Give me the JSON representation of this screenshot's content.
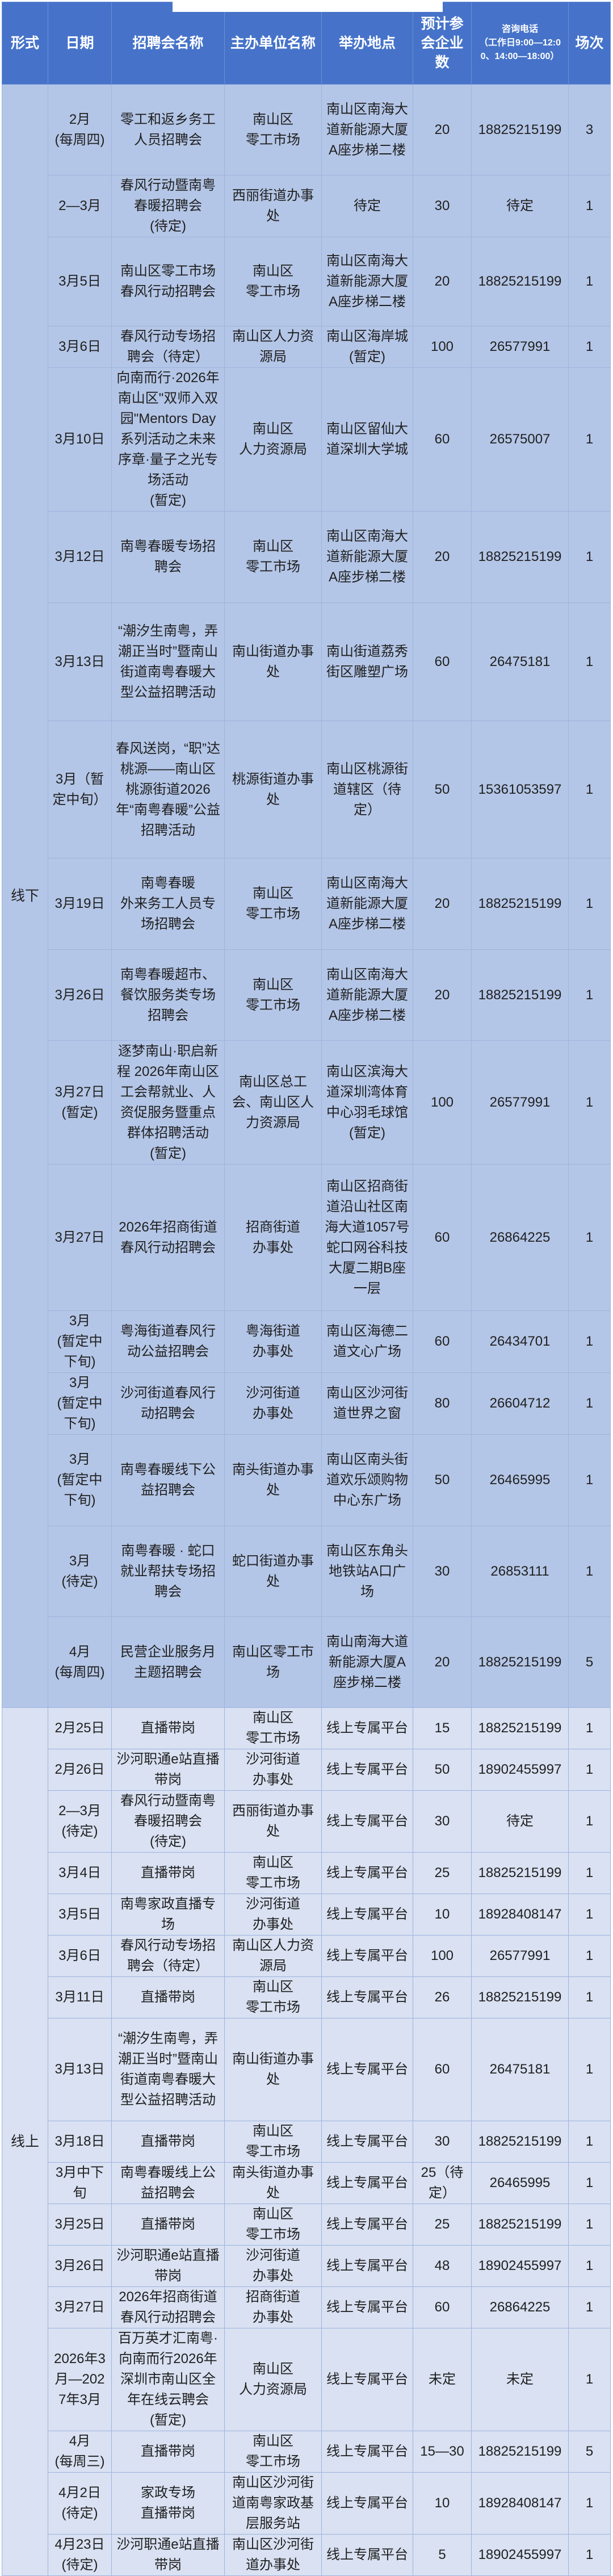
{
  "header": {
    "mode": "形式",
    "date": "日期",
    "name": "招聘会名称",
    "organizer": "主办单位名称",
    "location": "举办地点",
    "companies": "预计参会企业数",
    "phone": "咨询电话\n（工作日9:00—12:00、14:00—18:00）",
    "sessions": "场次"
  },
  "colors": {
    "header": "#4673c9",
    "offline_row": "#b4c6e7",
    "online_row": "#d9e1f2",
    "border": "#9db3df"
  },
  "sections": [
    {
      "key": "offline",
      "label": "线下",
      "rows": [
        {
          "date": "2月\n(每周四)",
          "name": "零工和返乡务工人员招聘会",
          "organizer": "南山区\n零工市场",
          "location": "南山区南海大道新能源大厦A座步梯二楼",
          "companies": "20",
          "phone": "18825215199",
          "sessions": "3"
        },
        {
          "date": "2—3月",
          "name": "春风行动暨南粤春暖招聘会\n(待定)",
          "organizer": "西丽街道办事处",
          "location": "待定",
          "companies": "30",
          "phone": "待定",
          "sessions": "1"
        },
        {
          "date": "3月5日",
          "name": "南山区零工市场春风行动招聘会",
          "organizer": "南山区\n零工市场",
          "location": "南山区南海大道新能源大厦A座步梯二楼",
          "companies": "20",
          "phone": "18825215199",
          "sessions": "1"
        },
        {
          "date": "3月6日",
          "name": "春风行动专场招聘会（待定）",
          "organizer": "南山区人力资源局",
          "location": "南山区海岸城\n(暂定)",
          "companies": "100",
          "phone": "26577991",
          "sessions": "1"
        },
        {
          "date": "3月10日",
          "name": "向南而行·2026年南山区\"双师入双园\"Mentors Day系列活动之未来序章·量子之光专场活动\n(暂定)",
          "organizer": "南山区\n人力资源局",
          "location": "南山区留仙大道深圳大学城",
          "companies": "60",
          "phone": "26575007",
          "sessions": "1"
        },
        {
          "date": "3月12日",
          "name": "南粤春暖专场招聘会",
          "organizer": "南山区\n零工市场",
          "location": "南山区南海大道新能源大厦A座步梯二楼",
          "companies": "20",
          "phone": "18825215199",
          "sessions": "1"
        },
        {
          "date": "3月13日",
          "name": "“潮汐生南粤，弄潮正当时”暨南山街道南粤春暖大型公益招聘活动",
          "organizer": "南山街道办事处",
          "location": "南山街道荔秀街区雕塑广场",
          "companies": "60",
          "phone": "26475181",
          "sessions": "1"
        },
        {
          "date": "3月（暂定中旬）",
          "name": "春风送岗，“职”达桃源——南山区桃源街道2026年“南粤春暖”公益招聘活动",
          "organizer": "桃源街道办事处",
          "location": "南山区桃源街道辖区（待定）",
          "companies": "50",
          "phone": "15361053597",
          "sessions": "1"
        },
        {
          "date": "3月19日",
          "name": "南粤春暖\n外来务工人员专场招聘会",
          "organizer": "南山区\n零工市场",
          "location": "南山区南海大道新能源大厦A座步梯二楼",
          "companies": "20",
          "phone": "18825215199",
          "sessions": "1"
        },
        {
          "date": "3月26日",
          "name": "南粤春暖超市、餐饮服务类专场招聘会",
          "organizer": "南山区\n零工市场",
          "location": "南山区南海大道新能源大厦A座步梯二楼",
          "companies": "20",
          "phone": "18825215199",
          "sessions": "1"
        },
        {
          "date": "3月27日\n(暂定)",
          "name": "逐梦南山·职启新程 2026年南山区工会帮就业、人资促服务暨重点群体招聘活动\n(暂定)",
          "organizer": "南山区总工会、南山区人力资源局",
          "location": "南山区滨海大道深圳湾体育中心羽毛球馆\n(暂定)",
          "companies": "100",
          "phone": "26577991",
          "sessions": "1"
        },
        {
          "date": "3月27日",
          "name": "2026年招商街道春风行动招聘会",
          "organizer": "招商街道\n办事处",
          "location": "南山区招商街道沿山社区南海大道1057号蛇口网谷科技大厦二期B座一层",
          "companies": "60",
          "phone": "26864225",
          "sessions": "1"
        },
        {
          "date": "3月\n(暂定中下旬)",
          "name": "粤海街道春风行动公益招聘会",
          "organizer": "粤海街道\n办事处",
          "location": "南山区海德二道文心广场",
          "companies": "60",
          "phone": "26434701",
          "sessions": "1"
        },
        {
          "date": "3月\n(暂定中下旬)",
          "name": "沙河街道春风行动招聘会",
          "organizer": "沙河街道\n办事处",
          "location": "南山区沙河街道世界之窗",
          "companies": "80",
          "phone": "26604712",
          "sessions": "1"
        },
        {
          "date": "3月\n(暂定中下旬)",
          "name": "南粤春暖线下公益招聘会",
          "organizer": "南头街道办事处",
          "location": "南山区南头街道欢乐颂购物中心东广场",
          "companies": "50",
          "phone": "26465995",
          "sessions": "1"
        },
        {
          "date": "3月\n(待定)",
          "name": "南粤春暖 · 蛇口就业帮扶专场招聘会",
          "organizer": "蛇口街道办事处",
          "location": "南山区东角头地铁站A口广场",
          "companies": "30",
          "phone": "26853111",
          "sessions": "1"
        },
        {
          "date": "4月\n(每周四)",
          "name": "民营企业服务月主题招聘会",
          "organizer": "南山区零工市场",
          "location": "南山南海大道新能源大厦A座步梯二楼",
          "companies": "20",
          "phone": "18825215199",
          "sessions": "5"
        }
      ]
    },
    {
      "key": "online",
      "label": "线上",
      "rows": [
        {
          "date": "2月25日",
          "name": "直播带岗",
          "organizer": "南山区\n零工市场",
          "location": "线上专属平台",
          "companies": "15",
          "phone": "18825215199",
          "sessions": "1"
        },
        {
          "date": "2月26日",
          "name": "沙河职通e站直播带岗",
          "organizer": "沙河街道\n办事处",
          "location": "线上专属平台",
          "companies": "50",
          "phone": "18902455997",
          "sessions": "1"
        },
        {
          "date": "2—3月\n(待定)",
          "name": "春风行动暨南粤春暖招聘会\n(待定)",
          "organizer": "西丽街道办事处",
          "location": "线上专属平台",
          "companies": "30",
          "phone": "待定",
          "sessions": "1"
        },
        {
          "date": "3月4日",
          "name": "直播带岗",
          "organizer": "南山区\n零工市场",
          "location": "线上专属平台",
          "companies": "25",
          "phone": "18825215199",
          "sessions": "1"
        },
        {
          "date": "3月5日",
          "name": "南粤家政直播专场",
          "organizer": "沙河街道\n办事处",
          "location": "线上专属平台",
          "companies": "10",
          "phone": "18928408147",
          "sessions": "1"
        },
        {
          "date": "3月6日",
          "name": "春风行动专场招聘会（待定）",
          "organizer": "南山区人力资源局",
          "location": "线上专属平台",
          "companies": "100",
          "phone": "26577991",
          "sessions": "1"
        },
        {
          "date": "3月11日",
          "name": "直播带岗",
          "organizer": "南山区\n零工市场",
          "location": "线上专属平台",
          "companies": "26",
          "phone": "18825215199",
          "sessions": "1"
        },
        {
          "date": "3月13日",
          "name": "“潮汐生南粤，弄潮正当时”暨南山街道南粤春暖大型公益招聘活动",
          "organizer": "南山街道办事处",
          "location": "线上专属平台",
          "companies": "60",
          "phone": "26475181",
          "sessions": "1"
        },
        {
          "date": "3月18日",
          "name": "直播带岗",
          "organizer": "南山区\n零工市场",
          "location": "线上专属平台",
          "companies": "30",
          "phone": "18825215199",
          "sessions": "1"
        },
        {
          "date": "3月中下旬",
          "name": "南粤春暖线上公益招聘会",
          "organizer": "南头街道办事处",
          "location": "线上专属平台",
          "companies": "25（待定）",
          "phone": "26465995",
          "sessions": "1"
        },
        {
          "date": "3月25日",
          "name": "直播带岗",
          "organizer": "南山区\n零工市场",
          "location": "线上专属平台",
          "companies": "25",
          "phone": "18825215199",
          "sessions": "1"
        },
        {
          "date": "3月26日",
          "name": "沙河职通e站直播带岗",
          "organizer": "沙河街道\n办事处",
          "location": "线上专属平台",
          "companies": "48",
          "phone": "18902455997",
          "sessions": "1"
        },
        {
          "date": "3月27日",
          "name": "2026年招商街道春风行动招聘会",
          "organizer": "招商街道\n办事处",
          "location": "线上专属平台",
          "companies": "60",
          "phone": "26864225",
          "sessions": "1"
        },
        {
          "date": "2026年3月—2027年3月",
          "name": "百万英才汇南粤·向南而行2026年深圳市南山区全年在线云聘会\n(暂定)",
          "organizer": "南山区\n人力资源局",
          "location": "线上专属平台",
          "companies": "未定",
          "phone": "未定",
          "sessions": "1"
        },
        {
          "date": "4月\n(每周三)",
          "name": "直播带岗",
          "organizer": "南山区\n零工市场",
          "location": "线上专属平台",
          "companies": "15—30",
          "phone": "18825215199",
          "sessions": "5"
        },
        {
          "date": "4月2日\n(待定)",
          "name": "家政专场\n直播带岗",
          "organizer": "南山区沙河街道南粤家政基层服务站",
          "location": "线上专属平台",
          "companies": "10",
          "phone": "18928408147",
          "sessions": "1"
        },
        {
          "date": "4月23日\n(待定)",
          "name": "沙河职通e站直播带岗",
          "organizer": "南山区沙河街道办事处",
          "location": "线上专属平台",
          "companies": "5",
          "phone": "18902455997",
          "sessions": "1"
        }
      ]
    }
  ]
}
